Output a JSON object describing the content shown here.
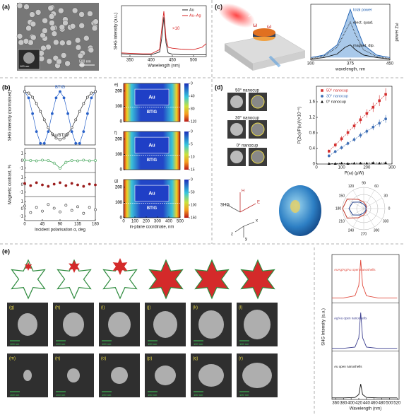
{
  "figure": {
    "panel_labels": [
      "(a)",
      "(b)",
      "(c)",
      "(d)",
      "(e)"
    ],
    "a": {
      "scale_bar": "500 nm",
      "inset_scale_bar": "100 nm"
    },
    "c": {
      "omega_in": "ω",
      "omega_out": "ω",
      "harmonic": "2ω"
    },
    "d": {
      "sem_labels": [
        "50° nanocup",
        "30° nanocup",
        "0° nanocup"
      ],
      "axes": [
        "SHG",
        "E",
        "H",
        "x",
        "y",
        "z"
      ]
    },
    "e": {
      "sub_labels": [
        "(g)",
        "(h)",
        "(i)",
        "(j)",
        "(k)",
        "(l)",
        "(m)",
        "(n)",
        "(o)",
        "(p)",
        "(q)",
        "(r)"
      ],
      "scale_bars": [
        "100 nm",
        "100 nm",
        "100 nm",
        "100 nm",
        "100 nm",
        "100 nm",
        "100 nm",
        "100 nm",
        "100 nm",
        "100 nm",
        "100 nm",
        "100 nm"
      ]
    }
  },
  "chart_data": [
    {
      "type": "line",
      "xlabel": "Wavelength (nm)",
      "ylabel": "SHG intensity (a.u.)",
      "xlim": [
        330,
        530
      ],
      "xticks": [
        350,
        400,
        450,
        500
      ],
      "ylim": [
        0,
        11
      ],
      "legend": "upper right",
      "annotation": "×10",
      "x": [
        330,
        350,
        380,
        400,
        420,
        425,
        430,
        435,
        440,
        450,
        470,
        500,
        520,
        530
      ],
      "series": [
        {
          "name": "Au",
          "color": "#222222",
          "values": [
            0.6,
            0.5,
            0.4,
            0.4,
            1,
            4,
            8.5,
            3,
            0.8,
            0.5,
            0.4,
            0.4,
            0.4,
            0.4
          ]
        },
        {
          "name": "Au–Ag",
          "color": "#d62020",
          "values": [
            0.8,
            0.7,
            0.6,
            0.6,
            1.5,
            6,
            9.8,
            4,
            2,
            1.8,
            1.6,
            1.5,
            2,
            2.8
          ]
        }
      ]
    },
    {
      "type": "line",
      "xlabel": "wavelength, nm",
      "ylabel": "power 2ω",
      "xlim": [
        300,
        450
      ],
      "xticks": [
        300,
        375,
        450
      ],
      "ylim": [
        0,
        1.1
      ],
      "x": [
        300,
        325,
        350,
        365,
        375,
        385,
        400,
        425,
        450
      ],
      "series": [
        {
          "name": "total power",
          "color": "#1f5fb0",
          "fill": "#a9c9ea",
          "values": [
            0.05,
            0.1,
            0.3,
            0.7,
            1,
            0.7,
            0.3,
            0.1,
            0.05
          ]
        },
        {
          "name": "elect. quad.",
          "color": "#111111",
          "style": "dotted",
          "values": [
            0.03,
            0.08,
            0.25,
            0.55,
            0.75,
            0.5,
            0.2,
            0.07,
            0.03
          ]
        },
        {
          "name": "magnet. dip.",
          "color": "#111111",
          "values": [
            0.02,
            0.05,
            0.12,
            0.25,
            0.3,
            0.2,
            0.1,
            0.05,
            0.02
          ]
        }
      ]
    },
    {
      "type": "scatter",
      "ylabel": "SHG intensity (normalised)",
      "xlim": [
        0,
        180
      ],
      "ylim": [
        0,
        1.1
      ],
      "x": [
        0,
        10,
        20,
        30,
        40,
        50,
        60,
        70,
        80,
        90,
        100,
        110,
        120,
        130,
        140,
        150,
        160,
        170,
        180
      ],
      "series": [
        {
          "name": "BTIG",
          "color": "#2a62c9",
          "marker": "circle",
          "line": "solid",
          "values": [
            1,
            0.883,
            0.587,
            0.25,
            0.03,
            0.03,
            0.25,
            0.587,
            0.883,
            1,
            0.883,
            0.587,
            0.25,
            0.03,
            0.03,
            0.25,
            0.587,
            0.883,
            1
          ]
        },
        {
          "name": "Au/BTIG",
          "color": "#222222",
          "marker": "open-circle",
          "line": "solid",
          "values": [
            1,
            0.973,
            0.895,
            0.775,
            0.629,
            0.472,
            0.325,
            0.206,
            0.127,
            0.1,
            0.127,
            0.206,
            0.325,
            0.472,
            0.629,
            0.775,
            0.895,
            0.973,
            1
          ]
        }
      ]
    },
    {
      "type": "scatter",
      "xlabel": "Incident polarisation α, deg",
      "ylabel": "Magnetic contrast, %",
      "xlim": [
        0,
        180
      ],
      "xticks": [
        0,
        45,
        90,
        135,
        180
      ],
      "x": [
        0,
        15,
        30,
        45,
        60,
        75,
        90,
        105,
        120,
        135,
        150,
        165,
        180
      ],
      "series": [
        {
          "color": "#2e9a46",
          "marker": "open-circle",
          "line": "solid",
          "ylim": [
            -1.5,
            1.5
          ],
          "yticks": [
            -1,
            0,
            1
          ],
          "values": [
            0.1,
            0.05,
            0,
            0.1,
            0.05,
            -0.3,
            -1,
            -0.2,
            0.05,
            0,
            0.1,
            0,
            0.05
          ]
        },
        {
          "color": "#9b1c1c",
          "marker": "circle",
          "ylim": [
            -1.5,
            1.5
          ],
          "yticks": [
            -1,
            0,
            1
          ],
          "values": [
            0.2,
            -0.1,
            0.3,
            0,
            -0.2,
            0.1,
            0.3,
            -0.1,
            0.2,
            0,
            -0.2,
            0.1,
            0
          ]
        },
        {
          "color": "#333333",
          "marker": "open-circle",
          "ylim": [
            -1.5,
            1.5
          ],
          "yticks": [
            -1,
            0,
            1
          ],
          "values": [
            0.4,
            -0.5,
            0.2,
            -0.3,
            0.6,
            0.1,
            -0.4,
            0.5,
            -0.2,
            0.3,
            -0.6,
            0.2,
            -0.1
          ]
        }
      ]
    },
    {
      "type": "scatter",
      "xlabel": "P(ω) (μW)",
      "ylabel": "P(2ω)/P(ω)²(×10⁻⁶)",
      "xlim": [
        0,
        300
      ],
      "xticks": [
        0,
        100,
        200,
        300
      ],
      "ylim": [
        0,
        2
      ],
      "yticks": [
        0,
        0.4,
        0.8,
        1.2,
        1.6
      ],
      "legend": "upper left",
      "x": [
        50,
        75,
        100,
        125,
        150,
        175,
        200,
        225,
        250,
        275
      ],
      "series": [
        {
          "name": "50° nanocup",
          "color": "#d32f2f",
          "marker": "square",
          "line": "dashed",
          "values": [
            0.33,
            0.49,
            0.65,
            0.81,
            0.98,
            1.14,
            1.3,
            1.46,
            1.63,
            1.79
          ],
          "errors": [
            0.05,
            0.06,
            0.07,
            0.08,
            0.09,
            0.1,
            0.11,
            0.12,
            0.14,
            0.16
          ]
        },
        {
          "name": "30° nanocup",
          "color": "#3f6fb5",
          "marker": "circle",
          "line": "dashed",
          "values": [
            0.21,
            0.32,
            0.42,
            0.53,
            0.63,
            0.74,
            0.84,
            0.95,
            1.05,
            1.16
          ],
          "errors": [
            0.04,
            0.04,
            0.05,
            0.05,
            0.06,
            0.07,
            0.07,
            0.08,
            0.09,
            0.1
          ]
        },
        {
          "name": "0° nanocup",
          "color": "#111111",
          "marker": "triangle",
          "line": "dashed",
          "values": [
            0.01,
            0.01,
            0.02,
            0.01,
            0.02,
            0.02,
            0.02,
            0.03,
            0.02,
            0.03
          ]
        }
      ]
    },
    {
      "type": "polar",
      "rlim": [
        0,
        1
      ],
      "theta": [
        0,
        30,
        60,
        90,
        120,
        150,
        180,
        210,
        240,
        270,
        300,
        330
      ],
      "thetaticks": [
        0,
        30,
        60,
        90,
        120,
        150,
        180,
        210,
        240,
        270,
        300,
        330
      ],
      "series": [
        {
          "color": "#c0392b",
          "values": [
            0.1,
            0.15,
            0.2,
            0.3,
            0.5,
            0.9,
            1,
            0.9,
            0.5,
            0.3,
            0.2,
            0.15
          ]
        },
        {
          "color": "#1f3c88",
          "values": [
            0.1,
            0.12,
            0.15,
            0.2,
            0.35,
            0.6,
            0.7,
            0.6,
            0.35,
            0.2,
            0.15,
            0.12
          ]
        }
      ]
    },
    {
      "type": "line",
      "xlabel": "Wavelength (nm)",
      "ylabel": "SHG Intensity (a.u.)",
      "xlim": [
        350,
        525
      ],
      "xticks": [
        360,
        380,
        400,
        420,
        440,
        460,
        480,
        500,
        520
      ],
      "x": [
        350,
        380,
        410,
        420,
        425,
        430,
        440,
        470,
        500,
        520
      ],
      "series": [
        {
          "name": "AuAg/Ag/Au open nanoshells",
          "color": "#e0473a",
          "ylim": [
            0,
            1.1
          ],
          "values": [
            0.1,
            0.1,
            0.15,
            0.4,
            1,
            0.4,
            0.15,
            0.1,
            0.1,
            0.1
          ]
        },
        {
          "name": "Ag/Au open nanoshells",
          "color": "#3c3f8f",
          "ylim": [
            0,
            1.1
          ],
          "values": [
            0.05,
            0.05,
            0.08,
            0.3,
            0.9,
            0.3,
            0.08,
            0.05,
            0.05,
            0.05
          ]
        },
        {
          "name": "Au open nanoshells",
          "color": "#111111",
          "ylim": [
            0,
            1.1
          ],
          "values": [
            0.02,
            0.02,
            0.03,
            0.1,
            0.35,
            0.1,
            0.03,
            0.02,
            0.02,
            0.02
          ]
        }
      ]
    },
    {
      "type": "heatmap",
      "panel": "e)",
      "labels": [
        "Au",
        "BTIG"
      ],
      "xlim": [
        0,
        500
      ],
      "ylim": [
        0,
        250
      ],
      "yticks": [
        0,
        100,
        200
      ],
      "clim": [
        0,
        120
      ],
      "cticks": [
        0,
        40,
        80,
        120
      ]
    },
    {
      "type": "heatmap",
      "panel": "f)",
      "labels": [
        "Au",
        "BTIG"
      ],
      "xlim": [
        0,
        500
      ],
      "ylim": [
        0,
        250
      ],
      "yticks": [
        0,
        100,
        200
      ],
      "clim": [
        0,
        15
      ],
      "cticks": [
        0,
        5,
        10,
        15
      ]
    },
    {
      "type": "heatmap",
      "panel": "g)",
      "labels": [
        "Au",
        "BTIG"
      ],
      "xlim": [
        0,
        500
      ],
      "ylim": [
        0,
        250
      ],
      "yticks": [
        0,
        100,
        200
      ],
      "xticks": [
        0,
        100,
        200,
        300,
        400,
        500
      ],
      "xlabel": "in-plane coordinate, nm",
      "clim": [
        0,
        150
      ],
      "cticks": [
        0,
        50,
        100,
        150
      ]
    }
  ]
}
